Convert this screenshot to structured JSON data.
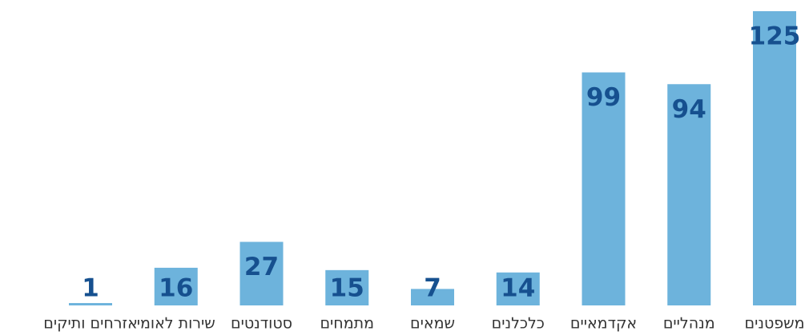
{
  "chart_data": {
    "type": "bar",
    "categories": [
      "משפטנים",
      "מנהליים",
      "אקדמאיים",
      "כלכלנים",
      "שמאים",
      "מתמחים",
      "סטודנטים",
      "שירות לאומי",
      "אזרחים ותיקים"
    ],
    "values": [
      125,
      94,
      99,
      14,
      7,
      15,
      27,
      16,
      1
    ],
    "color": "#6db3dc",
    "label_color": "#16508f"
  }
}
